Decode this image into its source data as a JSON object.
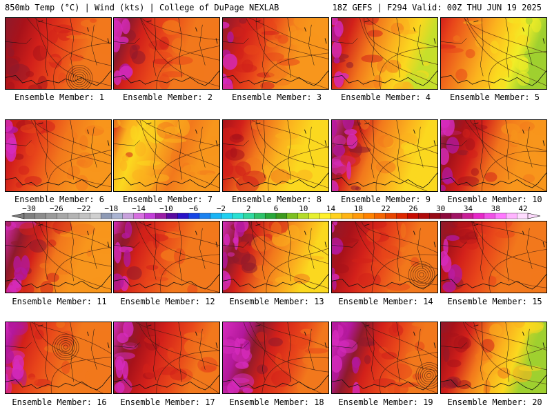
{
  "header": {
    "left_title": "850mb Temp (°C) | Wind (kts) | College of DuPage NEXLAB",
    "right_title": "18Z GEFS | F294 Valid: 00Z THU JUN 19 2025"
  },
  "member_label": "Ensemble Member:",
  "members": [
    {
      "number": "1"
    },
    {
      "number": "2"
    },
    {
      "number": "3"
    },
    {
      "number": "4"
    },
    {
      "number": "5"
    },
    {
      "number": "6"
    },
    {
      "number": "7"
    },
    {
      "number": "8"
    },
    {
      "number": "9"
    },
    {
      "number": "10"
    },
    {
      "number": "11"
    },
    {
      "number": "12"
    },
    {
      "number": "13"
    },
    {
      "number": "14"
    },
    {
      "number": "15"
    },
    {
      "number": "16"
    },
    {
      "number": "17"
    },
    {
      "number": "18"
    },
    {
      "number": "19"
    },
    {
      "number": "20"
    }
  ],
  "colorbar": {
    "ticks": [
      "−30",
      "−26",
      "−22",
      "−18",
      "−14",
      "−10",
      "−6",
      "−2",
      "2",
      "6",
      "10",
      "14",
      "18",
      "22",
      "26",
      "30",
      "34",
      "38",
      "42"
    ],
    "colors": [
      "#7f7f7f",
      "#8c8c8c",
      "#9a9a9a",
      "#a7a7a7",
      "#b4b4b4",
      "#c2c2c2",
      "#cfcfcf",
      "#8e9ab5",
      "#a9b3d1",
      "#c7a1dc",
      "#d66ee0",
      "#c23fd8",
      "#9a1ea6",
      "#5a0aa0",
      "#2a12c8",
      "#1646e6",
      "#1c82f0",
      "#19b4f5",
      "#20d0f0",
      "#2ae0d2",
      "#30d8a0",
      "#2ec26a",
      "#28a83a",
      "#3c9a1e",
      "#7cc021",
      "#b4dc28",
      "#e6f030",
      "#fff02a",
      "#ffd21e",
      "#ffb414",
      "#ff9a0a",
      "#ff8200",
      "#f46400",
      "#e84600",
      "#de2800",
      "#c80a00",
      "#b00a0a",
      "#960a14",
      "#8c0a3c",
      "#a01464",
      "#c81e96",
      "#e628c8",
      "#f050e6",
      "#ff78ff",
      "#ffb4ff",
      "#ffdcff"
    ]
  }
}
